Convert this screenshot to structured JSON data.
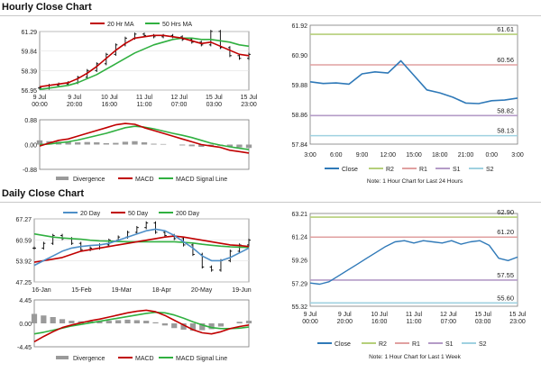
{
  "sections": {
    "hourly_title": "Hourly Close Chart",
    "daily_title": "Daily Close Chart"
  },
  "colors": {
    "price": "#000000",
    "ma_short": "#c00000",
    "ma_long": "#30b040",
    "ma_mid": "#c00000",
    "ma_200": "#30b040",
    "ma_20": "#4e8fc8",
    "macd": "#c00000",
    "signal": "#30b040",
    "divergence": "#9a9a9a",
    "close": "#2f79b8",
    "r2": "#b5cf7a",
    "r1": "#e0a0a0",
    "s1": "#b49bc7",
    "s2": "#9fd1e0"
  },
  "chart_data": [
    {
      "id": "hourly_price",
      "type": "line",
      "title": "Hourly Close Chart",
      "legend": [
        "20 Hr MA",
        "50 Hrs MA"
      ],
      "y_ticks": [
        56.95,
        58.39,
        59.84,
        61.29
      ],
      "ylim": [
        56.95,
        61.29
      ],
      "x_ticks": [
        "9 Jul\n00:00",
        "9 Jul\n20:00",
        "10 Jul\n16:00",
        "11 Jul\n11:00",
        "12 Jul\n07:00",
        "15 Jul\n03:00",
        "15 Jul\n23:00"
      ],
      "series": [
        {
          "name": "Price",
          "values": [
            57.1,
            57.3,
            57.4,
            57.5,
            57.9,
            58.4,
            58.9,
            59.6,
            60.3,
            60.8,
            61.1,
            61.0,
            60.9,
            61.0,
            60.9,
            60.7,
            60.5,
            60.3,
            61.3,
            60.1,
            59.5,
            59.3,
            59.6
          ]
        },
        {
          "name": "20 Hr MA",
          "values": [
            57.2,
            57.3,
            57.4,
            57.5,
            57.8,
            58.2,
            58.7,
            59.3,
            59.9,
            60.4,
            60.8,
            60.9,
            61.0,
            61.0,
            60.9,
            60.8,
            60.6,
            60.4,
            60.5,
            60.2,
            59.9,
            59.6,
            59.5
          ]
        },
        {
          "name": "50 Hrs MA",
          "values": [
            57.0,
            57.1,
            57.2,
            57.3,
            57.5,
            57.8,
            58.1,
            58.5,
            58.9,
            59.3,
            59.7,
            60.0,
            60.3,
            60.5,
            60.7,
            60.8,
            60.8,
            60.7,
            60.7,
            60.6,
            60.5,
            60.3,
            60.2
          ]
        }
      ]
    },
    {
      "id": "hourly_macd",
      "type": "line",
      "legend": [
        "Divergence",
        "MACD",
        "MACD Signal Line"
      ],
      "y_ticks": [
        -0.88,
        0.0,
        0.88
      ],
      "ylim": [
        -0.88,
        0.88
      ],
      "series": [
        {
          "name": "MACD",
          "values": [
            -0.05,
            0.05,
            0.15,
            0.2,
            0.3,
            0.4,
            0.5,
            0.6,
            0.7,
            0.75,
            0.72,
            0.6,
            0.5,
            0.4,
            0.3,
            0.2,
            0.1,
            0.0,
            -0.05,
            -0.1,
            -0.2,
            -0.25,
            -0.3
          ]
        },
        {
          "name": "MACD Signal Line",
          "values": [
            0.0,
            0.02,
            0.06,
            0.1,
            0.16,
            0.24,
            0.32,
            0.4,
            0.5,
            0.6,
            0.65,
            0.62,
            0.56,
            0.48,
            0.4,
            0.33,
            0.25,
            0.15,
            0.05,
            -0.02,
            -0.08,
            -0.13,
            -0.18
          ]
        },
        {
          "name": "Divergence",
          "values": [
            0.15,
            0.12,
            0.1,
            0.1,
            0.08,
            0.09,
            0.08,
            0.05,
            0.06,
            0.1,
            0.12,
            0.08,
            0.03,
            0.02,
            0.0,
            -0.03,
            -0.06,
            -0.08,
            -0.05,
            -0.04,
            -0.08,
            -0.1,
            -0.12
          ]
        }
      ]
    },
    {
      "id": "hourly_sr",
      "type": "line",
      "y_ticks": [
        57.84,
        58.86,
        59.88,
        60.9,
        61.92
      ],
      "ylim": [
        57.84,
        61.92
      ],
      "x_ticks": [
        "3:00",
        "6:00",
        "9:00",
        "12:00",
        "15:00",
        "18:00",
        "21:00",
        "0:00",
        "3:00"
      ],
      "legend": [
        "Close",
        "R2",
        "R1",
        "S1",
        "S2"
      ],
      "levels": [
        {
          "name": "R2",
          "value": 61.61,
          "label": "61.61"
        },
        {
          "name": "R1",
          "value": 60.56,
          "label": "60.56"
        },
        {
          "name": "S1",
          "value": 58.82,
          "label": "58.82"
        },
        {
          "name": "S2",
          "value": 58.13,
          "label": "58.13"
        }
      ],
      "series": [
        {
          "name": "Close",
          "values": [
            59.98,
            59.92,
            59.94,
            59.9,
            60.25,
            60.32,
            60.28,
            60.7,
            60.2,
            59.7,
            59.6,
            59.45,
            59.25,
            59.23,
            59.33,
            59.35,
            59.42
          ]
        }
      ],
      "note": "Note: 1 Hour Chart for Last 24 Hours"
    },
    {
      "id": "daily_price",
      "type": "line",
      "title": "Daily Close Chart",
      "legend": [
        "20 Day",
        "50 Day",
        "200 Day"
      ],
      "y_ticks": [
        47.25,
        53.92,
        60.59,
        67.27
      ],
      "ylim": [
        47.25,
        67.27
      ],
      "x_ticks": [
        "16-Jan",
        "15-Feb",
        "19-Mar",
        "18-Apr",
        "20-May",
        "19-Jun"
      ],
      "series": [
        {
          "name": "Price",
          "values": [
            58.0,
            59.5,
            62.0,
            61.0,
            59.5,
            57.5,
            58.0,
            59.0,
            60.5,
            61.5,
            63.0,
            64.5,
            66.0,
            63.0,
            62.0,
            61.0,
            59.0,
            56.0,
            52.0,
            51.0,
            54.0,
            57.0,
            59.0,
            60.5
          ]
        },
        {
          "name": "20 Day",
          "values": [
            52.5,
            54.0,
            55.5,
            57.0,
            58.0,
            58.5,
            58.8,
            59.0,
            59.5,
            60.5,
            61.5,
            62.5,
            63.5,
            64.0,
            63.5,
            62.0,
            60.0,
            58.0,
            55.5,
            54.0,
            54.0,
            55.0,
            56.5,
            58.0
          ]
        },
        {
          "name": "50 Day",
          "values": [
            53.5,
            54.0,
            54.5,
            55.0,
            56.0,
            57.0,
            57.5,
            58.0,
            58.5,
            59.0,
            59.5,
            60.0,
            60.5,
            61.0,
            61.5,
            61.8,
            61.5,
            61.0,
            60.5,
            60.0,
            59.5,
            59.0,
            58.8,
            58.5
          ]
        },
        {
          "name": "200 Day",
          "values": [
            62.5,
            62.0,
            61.5,
            61.2,
            61.0,
            60.8,
            60.5,
            60.3,
            60.2,
            60.1,
            60.0,
            60.0,
            60.0,
            60.0,
            60.0,
            60.0,
            59.8,
            59.6,
            59.2,
            58.9,
            58.6,
            58.4,
            58.3,
            58.2
          ]
        }
      ]
    },
    {
      "id": "daily_macd",
      "type": "line",
      "legend": [
        "Divergence",
        "MACD",
        "MACD Signal Line"
      ],
      "y_ticks": [
        -4.45,
        0.0,
        4.45
      ],
      "ylim": [
        -4.45,
        4.45
      ],
      "series": [
        {
          "name": "MACD",
          "values": [
            -3.5,
            -2.5,
            -1.6,
            -0.8,
            -0.3,
            0.1,
            0.5,
            0.8,
            1.2,
            1.6,
            2.0,
            2.3,
            2.5,
            2.2,
            1.5,
            0.6,
            -0.3,
            -1.2,
            -1.8,
            -2.0,
            -1.6,
            -1.0,
            -0.6,
            -0.3
          ]
        },
        {
          "name": "MACD Signal Line",
          "values": [
            -2.0,
            -1.7,
            -1.3,
            -0.9,
            -0.5,
            -0.2,
            0.1,
            0.4,
            0.7,
            1.0,
            1.3,
            1.6,
            1.9,
            2.1,
            2.0,
            1.6,
            1.0,
            0.3,
            -0.3,
            -0.8,
            -1.0,
            -1.0,
            -0.9,
            -0.7
          ]
        },
        {
          "name": "Divergence",
          "values": [
            1.8,
            1.5,
            1.2,
            0.8,
            0.5,
            0.4,
            0.4,
            0.4,
            0.5,
            0.6,
            0.7,
            0.6,
            0.5,
            0.2,
            -0.4,
            -0.9,
            -1.2,
            -1.4,
            -1.3,
            -1.1,
            -0.6,
            0.0,
            0.3,
            0.5
          ]
        }
      ]
    },
    {
      "id": "daily_sr",
      "type": "line",
      "y_ticks": [
        55.32,
        57.29,
        59.26,
        61.24,
        63.21
      ],
      "ylim": [
        55.32,
        63.21
      ],
      "x_ticks": [
        "9 Jul\n00:00",
        "9 Jul\n20:00",
        "10 Jul\n16:00",
        "11 Jul\n11:00",
        "12 Jul\n07:00",
        "15 Jul\n03:00",
        "15 Jul\n23:00"
      ],
      "legend": [
        "Close",
        "R2",
        "R1",
        "S1",
        "S2"
      ],
      "levels": [
        {
          "name": "R2",
          "value": 62.9,
          "label": "62.90"
        },
        {
          "name": "R1",
          "value": 61.2,
          "label": "61.20"
        },
        {
          "name": "S1",
          "value": 57.55,
          "label": "57.55"
        },
        {
          "name": "S2",
          "value": 55.6,
          "label": "55.60"
        }
      ],
      "series": [
        {
          "name": "Close",
          "values": [
            57.3,
            57.2,
            57.4,
            57.9,
            58.4,
            58.9,
            59.4,
            59.9,
            60.4,
            60.8,
            60.9,
            60.7,
            60.9,
            60.8,
            60.7,
            60.9,
            60.6,
            60.8,
            60.9,
            60.5,
            59.4,
            59.2,
            59.5
          ]
        }
      ],
      "note": "Note: 1 Hour Chart for Last 1 Week"
    }
  ]
}
